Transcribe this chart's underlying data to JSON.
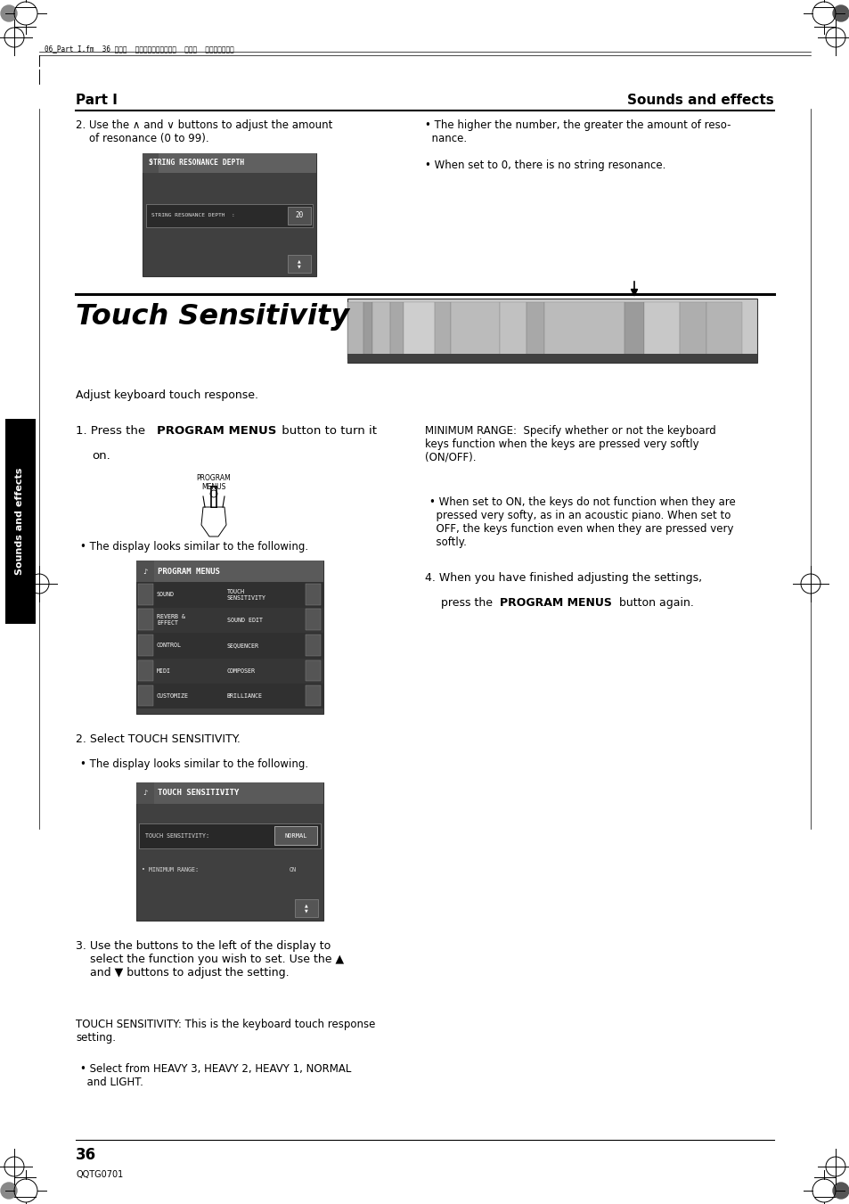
{
  "bg_color": "#ffffff",
  "page_width": 9.54,
  "page_height": 13.51,
  "ml": 0.85,
  "mr": 0.85,
  "header_text_left": "Part I",
  "header_text_right": "Sounds and effects",
  "footer_page": "36",
  "footer_code": "QQTG0701",
  "section_title": "Touch Sensitivity",
  "sidebar_text": "Sounds and effects",
  "sidebar_bg": "#000000",
  "sidebar_text_color": "#ffffff",
  "col_split": 4.77
}
